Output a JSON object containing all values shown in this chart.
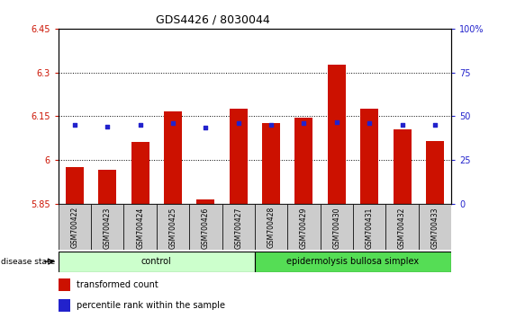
{
  "title": "GDS4426 / 8030044",
  "samples": [
    "GSM700422",
    "GSM700423",
    "GSM700424",
    "GSM700425",
    "GSM700426",
    "GSM700427",
    "GSM700428",
    "GSM700429",
    "GSM700430",
    "GSM700431",
    "GSM700432",
    "GSM700433"
  ],
  "bar_values": [
    5.975,
    5.965,
    6.06,
    6.165,
    5.865,
    6.175,
    6.125,
    6.145,
    6.325,
    6.175,
    6.105,
    6.065
  ],
  "percentile_values": [
    6.12,
    6.115,
    6.12,
    6.125,
    6.11,
    6.125,
    6.12,
    6.125,
    6.13,
    6.125,
    6.12,
    6.12
  ],
  "bar_bottom": 5.85,
  "ylim_left": [
    5.85,
    6.45
  ],
  "ylim_right": [
    0,
    100
  ],
  "yticks_left": [
    5.85,
    6.0,
    6.15,
    6.3,
    6.45
  ],
  "ytick_labels_left": [
    "5.85",
    "6",
    "6.15",
    "6.3",
    "6.45"
  ],
  "yticks_right": [
    0,
    25,
    50,
    75,
    100
  ],
  "ytick_labels_right": [
    "0",
    "25",
    "50",
    "75",
    "100%"
  ],
  "bar_color": "#CC1100",
  "percentile_color": "#2222CC",
  "control_samples": 6,
  "control_label": "control",
  "disease_label": "epidermolysis bullosa simplex",
  "control_color": "#CCFFCC",
  "disease_color": "#55DD55",
  "disease_state_label": "disease state",
  "legend_bar_label": "transformed count",
  "legend_pct_label": "percentile rank within the sample",
  "tick_color_left": "#CC1100",
  "tick_color_right": "#2222CC",
  "sample_bg_color": "#CCCCCC"
}
